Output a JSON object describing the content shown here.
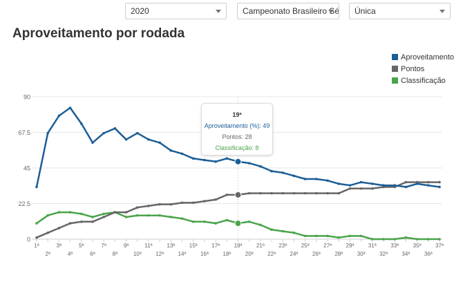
{
  "filters": [
    {
      "value": "2020"
    },
    {
      "value": "Campeonato Brasileiro Sé..."
    },
    {
      "value": "Única"
    }
  ],
  "title": "Aproveitamento por rodada",
  "legend": [
    {
      "name": "Aproveitamento",
      "color": "#1b5e96"
    },
    {
      "name": "Pontos",
      "color": "#666666"
    },
    {
      "name": "Classificação",
      "color": "#4aa44a"
    }
  ],
  "tooltip": {
    "title": "19ª",
    "lines": [
      {
        "label": "Aproveitamento (%): 49",
        "color": "#1b5e96"
      },
      {
        "label": "Pontos: 28",
        "color": "#666666"
      },
      {
        "label": "Classificação: 8",
        "color": "#4aa44a"
      }
    ]
  },
  "chart_data": {
    "type": "line",
    "y_ticks": [
      "90",
      "67.5",
      "45",
      "22.5",
      "0"
    ],
    "ylim": [
      0,
      90
    ],
    "grid": true,
    "legend_position": "top-right",
    "categories": [
      "1ª",
      "2ª",
      "3ª",
      "4ª",
      "5ª",
      "6ª",
      "7ª",
      "8ª",
      "9ª",
      "10ª",
      "11ª",
      "12ª",
      "13ª",
      "14ª",
      "15ª",
      "16ª",
      "17ª",
      "18ª",
      "19ª",
      "20ª",
      "21ª",
      "22ª",
      "23ª",
      "24ª",
      "25ª",
      "26ª",
      "27ª",
      "28ª",
      "29ª",
      "30ª",
      "31ª",
      "32ª",
      "33ª",
      "34ª",
      "35ª",
      "36ª",
      "37ª"
    ],
    "highlight_index": 18,
    "series": [
      {
        "name": "Aproveitamento",
        "color": "#1b5e96",
        "values": [
          33,
          67,
          78,
          83,
          73,
          61,
          67,
          70,
          63,
          67,
          63,
          61,
          56,
          54,
          51,
          50,
          49,
          51,
          49,
          48,
          46,
          43,
          42,
          40,
          38,
          38,
          37,
          35,
          34,
          36,
          35,
          34,
          34,
          33,
          35,
          34,
          33
        ]
      },
      {
        "name": "Pontos",
        "color": "#666666",
        "values": [
          1,
          4,
          7,
          10,
          11,
          11,
          14,
          17,
          17,
          20,
          21,
          22,
          22,
          23,
          23,
          24,
          25,
          28,
          28,
          29,
          29,
          29,
          29,
          29,
          29,
          29,
          29,
          29,
          32,
          32,
          32,
          33,
          33,
          36,
          36,
          36,
          36
        ]
      },
      {
        "name": "Classificação",
        "color": "#4aa44a",
        "values": [
          10,
          15,
          17,
          17,
          16,
          14,
          16,
          17,
          14,
          15,
          15,
          15,
          14,
          13,
          11,
          11,
          10,
          12,
          10,
          11,
          9,
          6,
          5,
          4,
          2,
          2,
          2,
          1,
          2,
          2,
          0,
          0,
          0,
          1,
          0,
          0,
          0
        ]
      }
    ]
  }
}
